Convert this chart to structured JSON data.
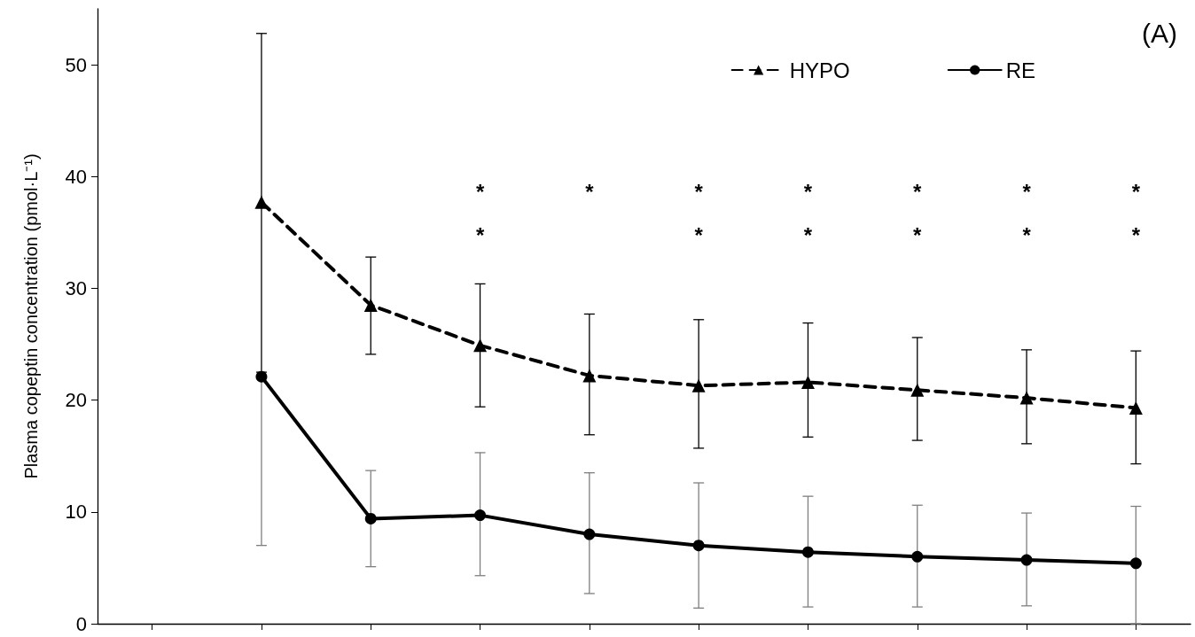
{
  "chart_data": {
    "type": "line",
    "ylabel": "Plasma copeptin concentration (pmol·L⁻¹)",
    "categories": [
      null,
      null,
      null,
      null,
      null,
      null,
      null,
      null,
      null,
      null
    ],
    "series": [
      {
        "name": "HYPO",
        "color": "#000000",
        "marker": "triangle",
        "line_style": "dashed",
        "values": [
          null,
          37.7,
          28.5,
          24.9,
          22.2,
          21.3,
          21.6,
          20.9,
          20.2,
          19.3
        ],
        "errors": [
          null,
          [
            22.5,
            52.8
          ],
          [
            24.1,
            32.8
          ],
          [
            19.4,
            30.4
          ],
          [
            16.9,
            27.7
          ],
          [
            15.7,
            27.2
          ],
          [
            16.7,
            26.9
          ],
          [
            16.4,
            25.6
          ],
          [
            16.1,
            24.5
          ],
          [
            14.3,
            24.4
          ]
        ]
      },
      {
        "name": "RE",
        "color": "#000000",
        "marker": "circle",
        "line_style": "solid",
        "values": [
          null,
          22.1,
          9.4,
          9.7,
          8.0,
          7.0,
          6.4,
          6.0,
          5.7,
          5.4
        ],
        "errors": [
          null,
          [
            7.0,
            22.1
          ],
          [
            5.1,
            13.7
          ],
          [
            4.3,
            15.3
          ],
          [
            2.7,
            13.5
          ],
          [
            1.4,
            12.6
          ],
          [
            1.5,
            11.4
          ],
          [
            1.5,
            10.6
          ],
          [
            1.6,
            9.9
          ],
          [
            0,
            10.5
          ]
        ]
      }
    ],
    "ylim": [
      0,
      55
    ],
    "yticks": [
      0,
      10,
      20,
      30,
      40,
      50
    ],
    "grid": false,
    "legend": "top right",
    "tick_labels": "y",
    "annotations": [
      "(A)",
      "*",
      "*",
      "*",
      "*",
      "*",
      "*",
      "*",
      "*",
      "*",
      "*",
      "*",
      "*",
      "*"
    ]
  }
}
